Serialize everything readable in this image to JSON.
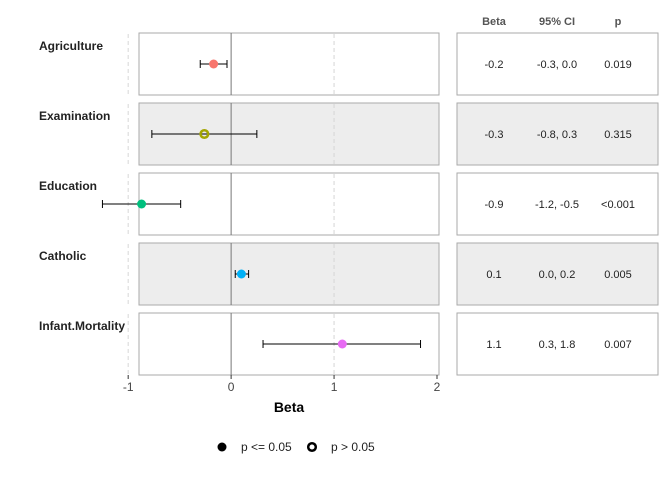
{
  "chart_data": {
    "type": "scatter",
    "subtype": "forest-plot",
    "xlabel": "Beta",
    "xlim": [
      -1.4,
      2.0
    ],
    "xticks": [
      -1,
      0,
      1,
      2
    ],
    "reference_line": 0,
    "grid": "vertical dashed at -1 and 1",
    "table_headers": {
      "beta": "Beta",
      "ci": "95% CI",
      "p": "p"
    },
    "rows": [
      {
        "label": "Agriculture",
        "beta": -0.17,
        "ci_low": -0.3,
        "ci_high": -0.04,
        "significant": true,
        "color": "#F8766D",
        "beta_text": "-0.2",
        "ci_text": "-0.3, 0.0",
        "p_text": "0.019"
      },
      {
        "label": "Examination",
        "beta": -0.26,
        "ci_low": -0.77,
        "ci_high": 0.25,
        "significant": false,
        "color": "#A3A500",
        "beta_text": "-0.3",
        "ci_text": "-0.8, 0.3",
        "p_text": "0.315"
      },
      {
        "label": "Education",
        "beta": -0.87,
        "ci_low": -1.25,
        "ci_high": -0.49,
        "significant": true,
        "color": "#00BF7D",
        "beta_text": "-0.9",
        "ci_text": "-1.2, -0.5",
        "p_text": "<0.001"
      },
      {
        "label": "Catholic",
        "beta": 0.1,
        "ci_low": 0.04,
        "ci_high": 0.17,
        "significant": true,
        "color": "#00B0F6",
        "beta_text": "0.1",
        "ci_text": "0.0, 0.2",
        "p_text": "0.005"
      },
      {
        "label": "Infant.Mortality",
        "beta": 1.08,
        "ci_low": 0.31,
        "ci_high": 1.84,
        "significant": true,
        "color": "#E76BF3",
        "beta_text": "1.1",
        "ci_text": "0.3, 1.8",
        "p_text": "0.007"
      }
    ],
    "legend": {
      "position": "bottom",
      "items": [
        {
          "label": "p <= 0.05",
          "shape": "filled-circle"
        },
        {
          "label": "p > 0.05",
          "shape": "open-circle"
        }
      ]
    }
  }
}
